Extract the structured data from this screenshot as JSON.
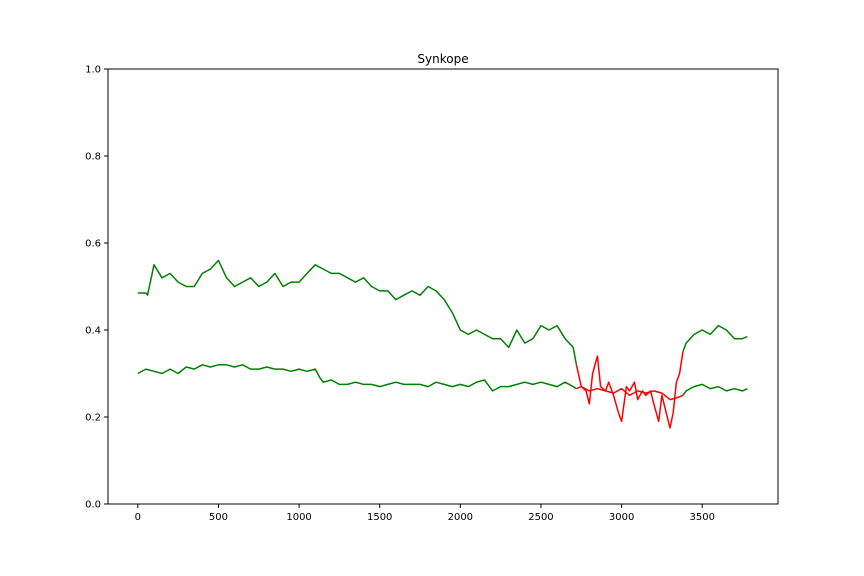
{
  "chart_data": {
    "type": "line",
    "title": "Synkope",
    "xlabel": "",
    "ylabel": "",
    "xlim": [
      -185,
      3970
    ],
    "ylim": [
      0.0,
      1.0
    ],
    "xticks": [
      0,
      500,
      1000,
      1500,
      2000,
      2500,
      3000,
      3500
    ],
    "yticks": [
      0.0,
      0.2,
      0.4,
      0.6,
      0.8,
      1.0
    ],
    "ytick_labels": [
      "0.0",
      "0.2",
      "0.4",
      "0.6",
      "0.8",
      "1.0"
    ],
    "grid": false,
    "series": [
      {
        "color": "#008000",
        "x": [
          0,
          50,
          60,
          100,
          150,
          200,
          250,
          300,
          350,
          400,
          450,
          500,
          550,
          600,
          650,
          700,
          750,
          800,
          850,
          900,
          950,
          1000,
          1050,
          1100,
          1150,
          1200,
          1250,
          1300,
          1350,
          1400,
          1450,
          1500,
          1550,
          1600,
          1650,
          1700,
          1750,
          1800,
          1850,
          1900,
          1950,
          2000,
          2050,
          2100,
          2150,
          2200,
          2250,
          2300,
          2350,
          2400,
          2450,
          2500,
          2550,
          2600,
          2650,
          2700,
          2720
        ],
        "y": [
          0.485,
          0.485,
          0.48,
          0.55,
          0.52,
          0.53,
          0.51,
          0.5,
          0.5,
          0.53,
          0.54,
          0.56,
          0.52,
          0.5,
          0.51,
          0.52,
          0.5,
          0.51,
          0.53,
          0.5,
          0.51,
          0.51,
          0.53,
          0.55,
          0.54,
          0.53,
          0.53,
          0.52,
          0.51,
          0.52,
          0.5,
          0.49,
          0.49,
          0.47,
          0.48,
          0.49,
          0.48,
          0.5,
          0.49,
          0.47,
          0.44,
          0.4,
          0.39,
          0.4,
          0.39,
          0.38,
          0.38,
          0.36,
          0.4,
          0.37,
          0.38,
          0.41,
          0.4,
          0.41,
          0.38,
          0.36,
          0.32
        ]
      },
      {
        "color": "#ff0000",
        "x": [
          2720,
          2750,
          2780,
          2800,
          2820,
          2850,
          2870,
          2900,
          2920,
          2950,
          2980,
          3000,
          3030,
          3050,
          3080,
          3100,
          3130,
          3150,
          3180,
          3200,
          3230,
          3250,
          3270,
          3300,
          3320,
          3340,
          3360,
          3380
        ],
        "y": [
          0.32,
          0.27,
          0.26,
          0.23,
          0.3,
          0.34,
          0.27,
          0.26,
          0.28,
          0.25,
          0.21,
          0.19,
          0.27,
          0.26,
          0.28,
          0.24,
          0.26,
          0.25,
          0.26,
          0.23,
          0.19,
          0.25,
          0.22,
          0.175,
          0.21,
          0.28,
          0.3,
          0.35
        ]
      },
      {
        "color": "#008000",
        "x": [
          3380,
          3400,
          3450,
          3500,
          3550,
          3600,
          3650,
          3700,
          3750,
          3780
        ],
        "y": [
          0.35,
          0.37,
          0.39,
          0.4,
          0.39,
          0.41,
          0.4,
          0.38,
          0.38,
          0.385
        ]
      },
      {
        "color": "#008000",
        "x": [
          0,
          50,
          100,
          150,
          200,
          250,
          300,
          350,
          400,
          450,
          500,
          550,
          600,
          650,
          700,
          750,
          800,
          850,
          900,
          950,
          1000,
          1050,
          1100,
          1130,
          1150,
          1200,
          1250,
          1300,
          1350,
          1400,
          1450,
          1500,
          1550,
          1600,
          1650,
          1700,
          1750,
          1800,
          1850,
          1900,
          1950,
          2000,
          2050,
          2100,
          2150,
          2200,
          2250,
          2300,
          2350,
          2400,
          2450,
          2500,
          2550,
          2600,
          2650,
          2700,
          2720
        ],
        "y": [
          0.3,
          0.31,
          0.305,
          0.3,
          0.31,
          0.3,
          0.315,
          0.31,
          0.32,
          0.315,
          0.32,
          0.32,
          0.315,
          0.32,
          0.31,
          0.31,
          0.315,
          0.31,
          0.31,
          0.305,
          0.31,
          0.305,
          0.31,
          0.29,
          0.28,
          0.285,
          0.275,
          0.275,
          0.28,
          0.275,
          0.275,
          0.27,
          0.275,
          0.28,
          0.275,
          0.275,
          0.275,
          0.27,
          0.28,
          0.275,
          0.27,
          0.275,
          0.27,
          0.28,
          0.285,
          0.26,
          0.27,
          0.27,
          0.275,
          0.28,
          0.275,
          0.28,
          0.275,
          0.27,
          0.28,
          0.27,
          0.265
        ]
      },
      {
        "color": "#ff0000",
        "x": [
          2720,
          2750,
          2800,
          2850,
          2900,
          2950,
          3000,
          3050,
          3100,
          3150,
          3200,
          3250,
          3300,
          3350,
          3380
        ],
        "y": [
          0.265,
          0.27,
          0.26,
          0.265,
          0.26,
          0.255,
          0.265,
          0.25,
          0.26,
          0.255,
          0.26,
          0.255,
          0.24,
          0.245,
          0.25
        ]
      },
      {
        "color": "#008000",
        "x": [
          3380,
          3400,
          3450,
          3500,
          3550,
          3600,
          3650,
          3700,
          3750,
          3780
        ],
        "y": [
          0.25,
          0.26,
          0.27,
          0.275,
          0.265,
          0.27,
          0.26,
          0.265,
          0.26,
          0.265
        ]
      }
    ]
  }
}
